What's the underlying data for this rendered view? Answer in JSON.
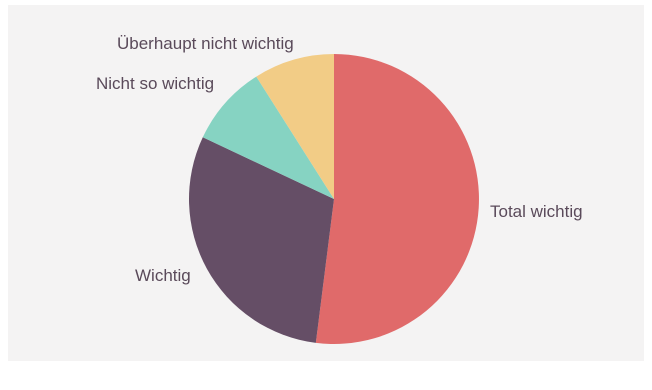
{
  "chart_data": {
    "type": "pie",
    "title": "",
    "start_angle_deg": 0,
    "direction": "clockwise",
    "slices": [
      {
        "label": "Total wichtig",
        "value": 52,
        "color": "#e06a6a"
      },
      {
        "label": "Wichtig",
        "value": 30,
        "color": "#654e66"
      },
      {
        "label": "Nicht so wichtig",
        "value": 9,
        "color": "#86d3c2"
      },
      {
        "label": "Überhaupt nicht wichtig",
        "value": 9,
        "color": "#f2cc86"
      }
    ],
    "background_color": "#f4f3f3"
  }
}
